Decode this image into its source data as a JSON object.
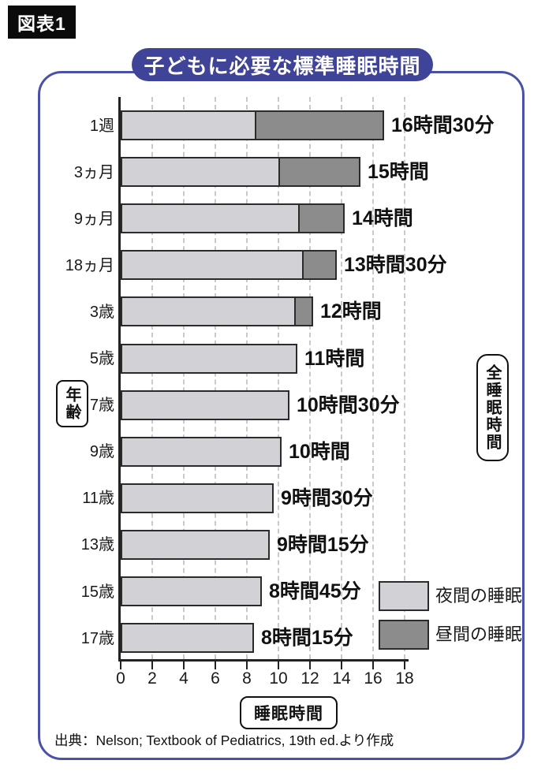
{
  "figure_label": "図表1",
  "title": "子どもに必要な標準睡眠時間",
  "colors": {
    "accent": "#3f4499",
    "frame_border": "#4a52a8",
    "night_fill": "#d2d2d6",
    "day_fill": "#8c8c8c",
    "bar_border": "#2b2b2b",
    "gridline": "#c8c8ce"
  },
  "axis": {
    "x_ticks": [
      "0",
      "2",
      "4",
      "6",
      "8",
      "10",
      "12",
      "14",
      "16",
      "18"
    ],
    "x_label": "睡眠時間",
    "y_label": "年齢",
    "right_label": "全睡眠時間"
  },
  "legend": [
    {
      "key": "night",
      "label": "夜間の睡眠"
    },
    {
      "key": "day",
      "label": "昼間の睡眠"
    }
  ],
  "source": "出典：Nelson; Textbook of Pediatrics, 19th ed.より作成",
  "chart_data": {
    "type": "bar",
    "orientation": "horizontal",
    "stacked": true,
    "title": "子どもに必要な標準睡眠時間",
    "xlabel": "睡眠時間",
    "ylabel": "年齢",
    "xlim": [
      0,
      18
    ],
    "grid": "vertical dashed lines every 2 hours",
    "legend_position": "bottom-right inside plot",
    "categories": [
      "1週",
      "3ヵ月",
      "9ヵ月",
      "18ヵ月",
      "3歳",
      "5歳",
      "7歳",
      "9歳",
      "11歳",
      "13歳",
      "15歳",
      "17歳"
    ],
    "series": [
      {
        "name": "夜間の睡眠",
        "values": [
          8.5,
          10,
          11.25,
          11.5,
          11,
          11,
          10.5,
          10,
          9.5,
          9.25,
          8.75,
          8.25
        ]
      },
      {
        "name": "昼間の睡眠",
        "values": [
          8,
          5,
          2.75,
          2,
          1,
          0,
          0,
          0,
          0,
          0,
          0,
          0
        ]
      }
    ],
    "totals": [
      16.5,
      15,
      14,
      13.5,
      12,
      11,
      10.5,
      10,
      9.5,
      9.25,
      8.75,
      8.25
    ],
    "total_labels": [
      "16時間30分",
      "15時間",
      "14時間",
      "13時間30分",
      "12時間",
      "11時間",
      "10時間30分",
      "10時間",
      "9時間30分",
      "9時間15分",
      "8時間45分",
      "8時間15分"
    ]
  }
}
